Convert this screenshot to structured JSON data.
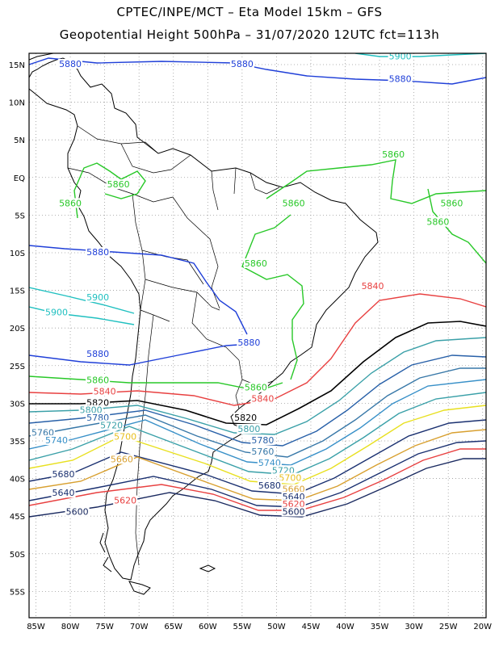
{
  "titles": {
    "line1": "CPTEC/INPE/MCT –  Eta Model 15km – GFS",
    "line2": "Geopotential Height 500hPa – 31/07/2020 12UTC fct=113h"
  },
  "map": {
    "lon_range": [
      -86,
      -19.5
    ],
    "lat_range": [
      -58.5,
      16.5
    ],
    "x_ticks": [
      "85W",
      "80W",
      "75W",
      "70W",
      "65W",
      "60W",
      "55W",
      "50W",
      "45W",
      "40W",
      "35W",
      "30W",
      "25W",
      "20W"
    ],
    "y_ticks": [
      "15N",
      "10N",
      "5N",
      "EQ",
      "5S",
      "10S",
      "15S",
      "20S",
      "25S",
      "30S",
      "35S",
      "40S",
      "45S",
      "50S",
      "55S"
    ],
    "grid": true
  },
  "contour_labels": [
    {
      "text": "5880",
      "color": "#1f3fd8",
      "lon": -80,
      "lat": 15
    },
    {
      "text": "5880",
      "color": "#1f3fd8",
      "lon": -55,
      "lat": 15
    },
    {
      "text": "5880",
      "color": "#1f3fd8",
      "lon": -32,
      "lat": 13
    },
    {
      "text": "5900",
      "color": "#20c0c0",
      "lon": -32,
      "lat": 16
    },
    {
      "text": "5860",
      "color": "#28c828",
      "lon": -33,
      "lat": 3
    },
    {
      "text": "5860",
      "color": "#28c828",
      "lon": -73,
      "lat": -1
    },
    {
      "text": "5860",
      "color": "#28c828",
      "lon": -80,
      "lat": -3.5
    },
    {
      "text": "5860",
      "color": "#28c828",
      "lon": -47.5,
      "lat": -3.5
    },
    {
      "text": "5860",
      "color": "#28c828",
      "lon": -24.5,
      "lat": -3.5
    },
    {
      "text": "5860",
      "color": "#28c828",
      "lon": -26.5,
      "lat": -6
    },
    {
      "text": "5860",
      "color": "#28c828",
      "lon": -53,
      "lat": -11.5
    },
    {
      "text": "5880",
      "color": "#1f3fd8",
      "lon": -76,
      "lat": -10
    },
    {
      "text": "5900",
      "color": "#20c0c0",
      "lon": -76,
      "lat": -16
    },
    {
      "text": "5900",
      "color": "#20c0c0",
      "lon": -82,
      "lat": -18
    },
    {
      "text": "5840",
      "color": "#e84040",
      "lon": -36,
      "lat": -14.5
    },
    {
      "text": "5880",
      "color": "#1f3fd8",
      "lon": -54,
      "lat": -22
    },
    {
      "text": "5880",
      "color": "#1f3fd8",
      "lon": -76,
      "lat": -23.5
    },
    {
      "text": "5860",
      "color": "#28c828",
      "lon": -76,
      "lat": -27
    },
    {
      "text": "5860",
      "color": "#28c828",
      "lon": -53,
      "lat": -28
    },
    {
      "text": "5840",
      "color": "#e84040",
      "lon": -75,
      "lat": -28.5
    },
    {
      "text": "5840",
      "color": "#e84040",
      "lon": -52,
      "lat": -29.5
    },
    {
      "text": "5820",
      "color": "#000000",
      "lon": -76,
      "lat": -30
    },
    {
      "text": "5820",
      "color": "#000000",
      "lon": -54.5,
      "lat": -32
    },
    {
      "text": "5800",
      "color": "#3aa0a8",
      "lon": -77,
      "lat": -31
    },
    {
      "text": "5800",
      "color": "#3aa0a8",
      "lon": -54,
      "lat": -33.5
    },
    {
      "text": "5780",
      "color": "#2860a8",
      "lon": -76,
      "lat": -32
    },
    {
      "text": "5780",
      "color": "#2860a8",
      "lon": -52,
      "lat": -35
    },
    {
      "text": "5760",
      "color": "#3878a8",
      "lon": -84,
      "lat": -34
    },
    {
      "text": "5760",
      "color": "#3878a8",
      "lon": -52,
      "lat": -36.5
    },
    {
      "text": "5740",
      "color": "#3890c8",
      "lon": -82,
      "lat": -35
    },
    {
      "text": "5740",
      "color": "#3890c8",
      "lon": -51,
      "lat": -38
    },
    {
      "text": "5720",
      "color": "#3aa0a8",
      "lon": -74,
      "lat": -33
    },
    {
      "text": "5720",
      "color": "#3aa0a8",
      "lon": -49,
      "lat": -39
    },
    {
      "text": "5700",
      "color": "#e8c020",
      "lon": -72,
      "lat": -34.5
    },
    {
      "text": "5700",
      "color": "#e8c020",
      "lon": -48,
      "lat": -40
    },
    {
      "text": "5680",
      "color": "#1a3070",
      "lon": -81,
      "lat": -39.5
    },
    {
      "text": "5680",
      "color": "#1a3070",
      "lon": -51,
      "lat": -41
    },
    {
      "text": "5660",
      "color": "#d8a030",
      "lon": -72.5,
      "lat": -37.5
    },
    {
      "text": "5660",
      "color": "#d8a030",
      "lon": -47.5,
      "lat": -41.5
    },
    {
      "text": "5640",
      "color": "#1a3070",
      "lon": -81,
      "lat": -42
    },
    {
      "text": "5640",
      "color": "#1a3070",
      "lon": -47.5,
      "lat": -42.5
    },
    {
      "text": "5620",
      "color": "#e84040",
      "lon": -72,
      "lat": -43
    },
    {
      "text": "5620",
      "color": "#e84040",
      "lon": -47.5,
      "lat": -43.5
    },
    {
      "text": "5600",
      "color": "#1a2a60",
      "lon": -79,
      "lat": -44.5
    },
    {
      "text": "5600",
      "color": "#1a2a60",
      "lon": -47.5,
      "lat": -44.5
    }
  ]
}
